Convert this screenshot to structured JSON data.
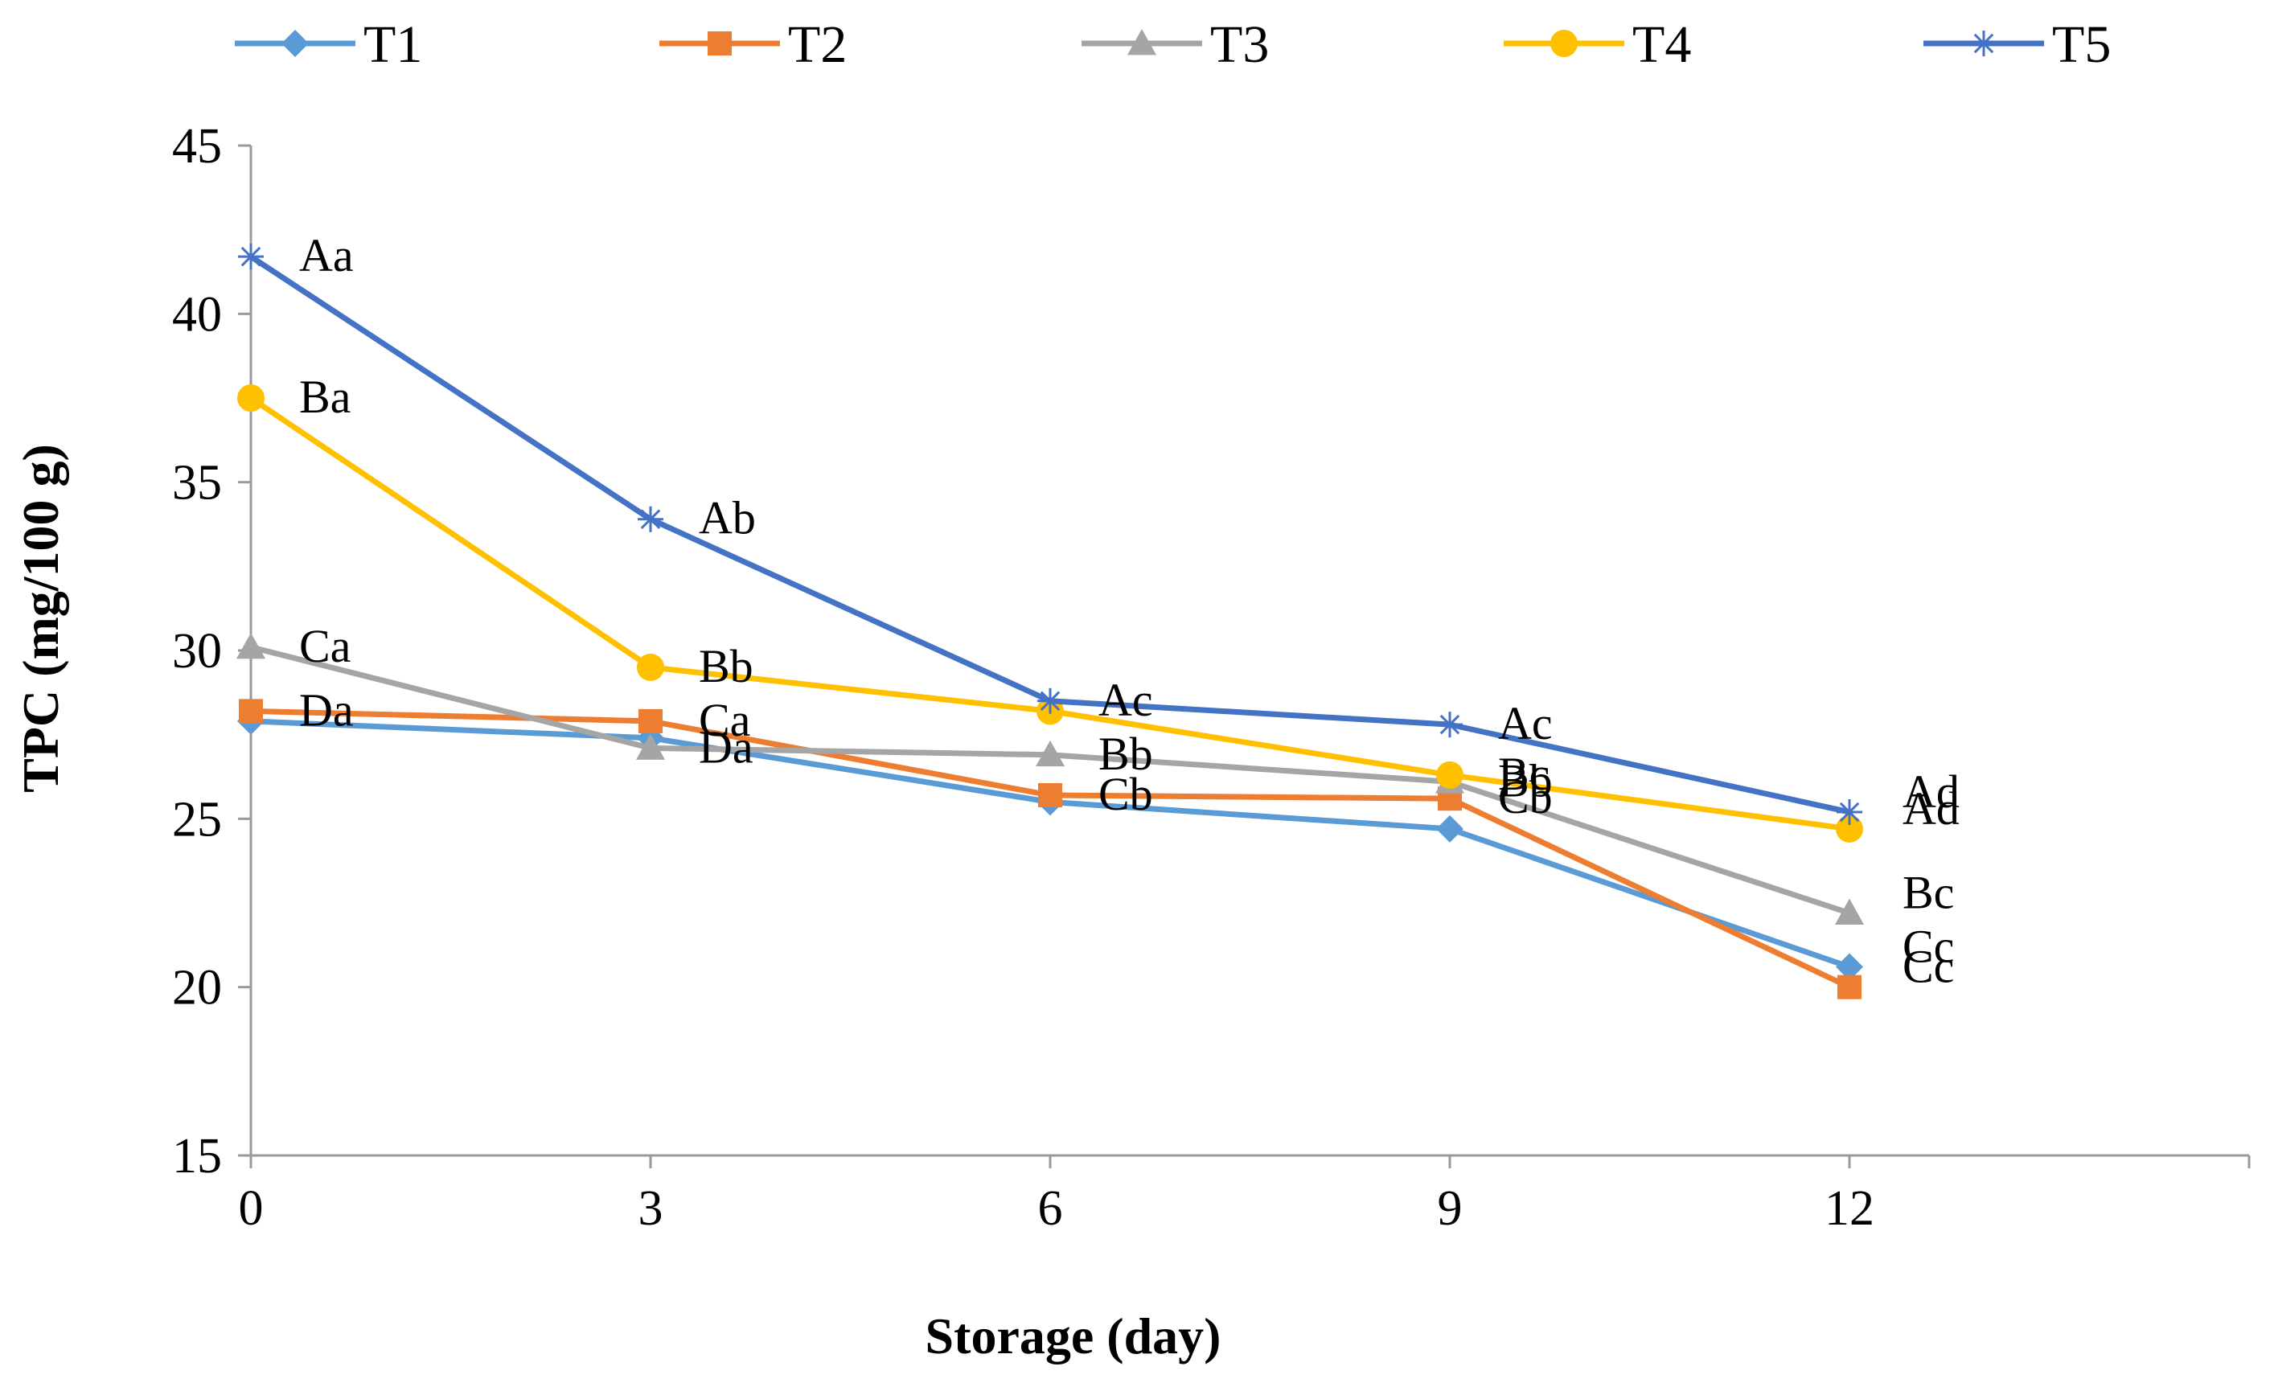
{
  "chart_data": {
    "type": "line",
    "title": "",
    "xlabel": "Storage (day)",
    "ylabel": "TPC (mg/100 g)",
    "x": [
      0,
      3,
      6,
      9,
      12
    ],
    "xlim": [
      0,
      15
    ],
    "ylim": [
      15,
      45
    ],
    "yticks": [
      15,
      20,
      25,
      30,
      35,
      40,
      45
    ],
    "xticks": [
      0,
      3,
      6,
      9,
      12
    ],
    "grid": false,
    "legend_position": "top",
    "series": [
      {
        "name": "T1",
        "color": "#5B9BD5",
        "marker": "diamond",
        "values": [
          27.9,
          27.4,
          25.5,
          24.7,
          20.6
        ],
        "labels": [
          "",
          "",
          "",
          "",
          "Cc"
        ]
      },
      {
        "name": "T2",
        "color": "#ED7D31",
        "marker": "square",
        "values": [
          28.2,
          27.9,
          25.7,
          25.6,
          20.0
        ],
        "labels": [
          "Da",
          "Ca",
          "Cb",
          "Cb",
          "Cc"
        ]
      },
      {
        "name": "T3",
        "color": "#A5A5A5",
        "marker": "triangle",
        "values": [
          30.1,
          27.1,
          26.9,
          26.1,
          22.2
        ],
        "labels": [
          "Ca",
          "Da",
          "Bb",
          "Bb",
          "Bc"
        ]
      },
      {
        "name": "T4",
        "color": "#FFC000",
        "marker": "circle",
        "values": [
          37.5,
          29.5,
          28.2,
          26.3,
          24.7
        ],
        "labels": [
          "Ba",
          "Bb",
          "",
          "Bc",
          "Ad"
        ]
      },
      {
        "name": "T5",
        "color": "#4472C4",
        "marker": "star",
        "values": [
          41.7,
          33.9,
          28.5,
          27.8,
          25.2
        ],
        "labels": [
          "Aa",
          "Ab",
          "Ac",
          "Ac",
          "Ad"
        ]
      }
    ]
  }
}
